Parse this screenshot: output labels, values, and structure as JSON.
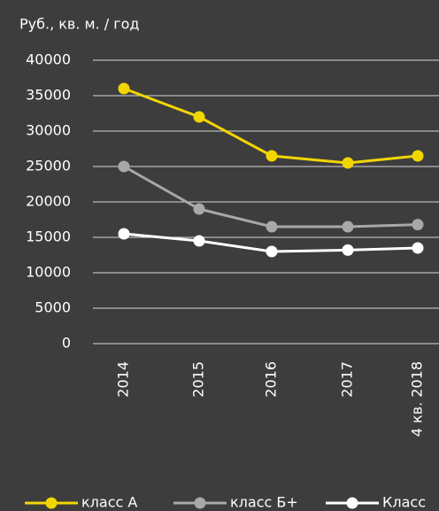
{
  "chart_data": {
    "type": "line",
    "ylabel": "Руб., кв. м. / год",
    "categories": [
      "2014",
      "2015",
      "2016",
      "2017",
      "4 кв. 2018"
    ],
    "series": [
      {
        "name": "класс А",
        "color": "#f2d600",
        "values": [
          36000,
          32000,
          26500,
          25500,
          26500
        ]
      },
      {
        "name": "класс Б+",
        "color": "#a8a8a8",
        "values": [
          25000,
          19000,
          16500,
          16500,
          16800
        ]
      },
      {
        "name": "Класс",
        "color": "#ffffff",
        "values": [
          15500,
          14500,
          13000,
          13200,
          13500
        ]
      }
    ],
    "ylim": [
      0,
      40000
    ],
    "yticks": [
      0,
      5000,
      10000,
      15000,
      20000,
      25000,
      30000,
      35000,
      40000
    ],
    "grid": true
  }
}
